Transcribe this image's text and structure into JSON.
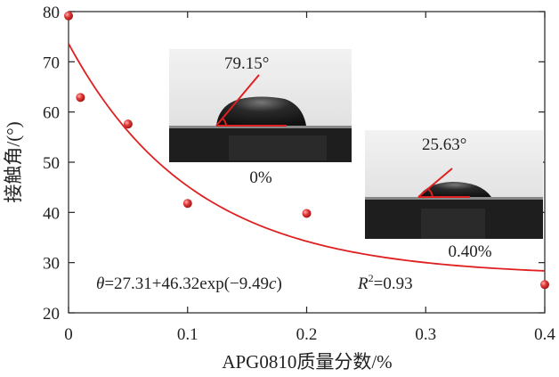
{
  "chart_data": {
    "type": "scatter",
    "xlabel": "APG0810质量分数/%",
    "ylabel": "接触角/(°)",
    "xlim": [
      0,
      0.4
    ],
    "ylim": [
      20,
      80
    ],
    "xticks": [
      "0",
      "0.1",
      "0.2",
      "0.3",
      "0.4"
    ],
    "yticks": [
      "20",
      "30",
      "40",
      "50",
      "60",
      "70",
      "80"
    ],
    "series": [
      {
        "type": "scatter",
        "x": [
          0,
          0.01,
          0.05,
          0.1,
          0.2,
          0.4
        ],
        "y": [
          79.15,
          62.9,
          57.6,
          41.8,
          39.8,
          25.63
        ],
        "color": "#d62a2a"
      },
      {
        "type": "line",
        "fit": {
          "a": 27.31,
          "b": 46.32,
          "k": 9.49
        },
        "color": "#e02020"
      }
    ],
    "annotation": {
      "theta": "θ",
      "equation": "=27.31+46.32exp(−9.49",
      "c": "c",
      "close": ")",
      "r2_prefix": "R",
      "r2_sup": "2",
      "r2_value": "=0.93"
    },
    "insets": [
      {
        "angle_label": "79.15°",
        "caption": "0%"
      },
      {
        "angle_label": "25.63°",
        "caption": "0.40%"
      }
    ],
    "colors": {
      "axis": "#222222",
      "marker": "#d62a2a",
      "fit": "#e02020",
      "inset_bg": "#e8e8e8",
      "inset_dark": "#1e1e1e"
    }
  }
}
